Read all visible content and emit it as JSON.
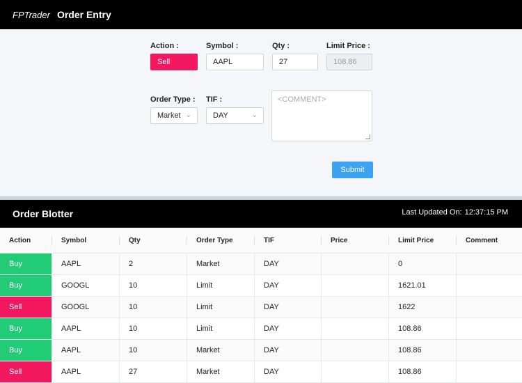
{
  "app": {
    "brand": "FPTrader"
  },
  "order_entry": {
    "title": "Order Entry",
    "action_label": "Action :",
    "action_value": "Sell",
    "symbol_label": "Symbol :",
    "symbol_value": "AAPL",
    "qty_label": "Qty :",
    "qty_value": "27",
    "limit_price_label": "Limit Price :",
    "limit_price_value": "108.86",
    "order_type_label": "Order Type :",
    "order_type_value": "Market",
    "tif_label": "TIF :",
    "tif_value": "DAY",
    "comment_placeholder": "<COMMENT>",
    "submit_label": "Submit"
  },
  "blotter": {
    "title": "Order Blotter",
    "last_updated_label": "Last Updated On:",
    "last_updated_value": "12:37:15 PM",
    "columns": [
      "Action",
      "Symbol",
      "Qty",
      "Order Type",
      "TIF",
      "Price",
      "Limit Price",
      "Comment"
    ],
    "rows": [
      [
        "Buy",
        "AAPL",
        "2",
        "Market",
        "DAY",
        "",
        "0",
        ""
      ],
      [
        "Buy",
        "GOOGL",
        "10",
        "Limit",
        "DAY",
        "",
        "1621.01",
        ""
      ],
      [
        "Sell",
        "GOOGL",
        "10",
        "Limit",
        "DAY",
        "",
        "1622",
        ""
      ],
      [
        "Buy",
        "AAPL",
        "10",
        "Limit",
        "DAY",
        "",
        "108.86",
        ""
      ],
      [
        "Buy",
        "AAPL",
        "10",
        "Market",
        "DAY",
        "",
        "108.86",
        ""
      ],
      [
        "Sell",
        "AAPL",
        "27",
        "Market",
        "DAY",
        "",
        "108.86",
        ""
      ]
    ]
  },
  "colors": {
    "buy": "#22cc77",
    "sell": "#f2175f",
    "submit": "#3ba3f2"
  }
}
